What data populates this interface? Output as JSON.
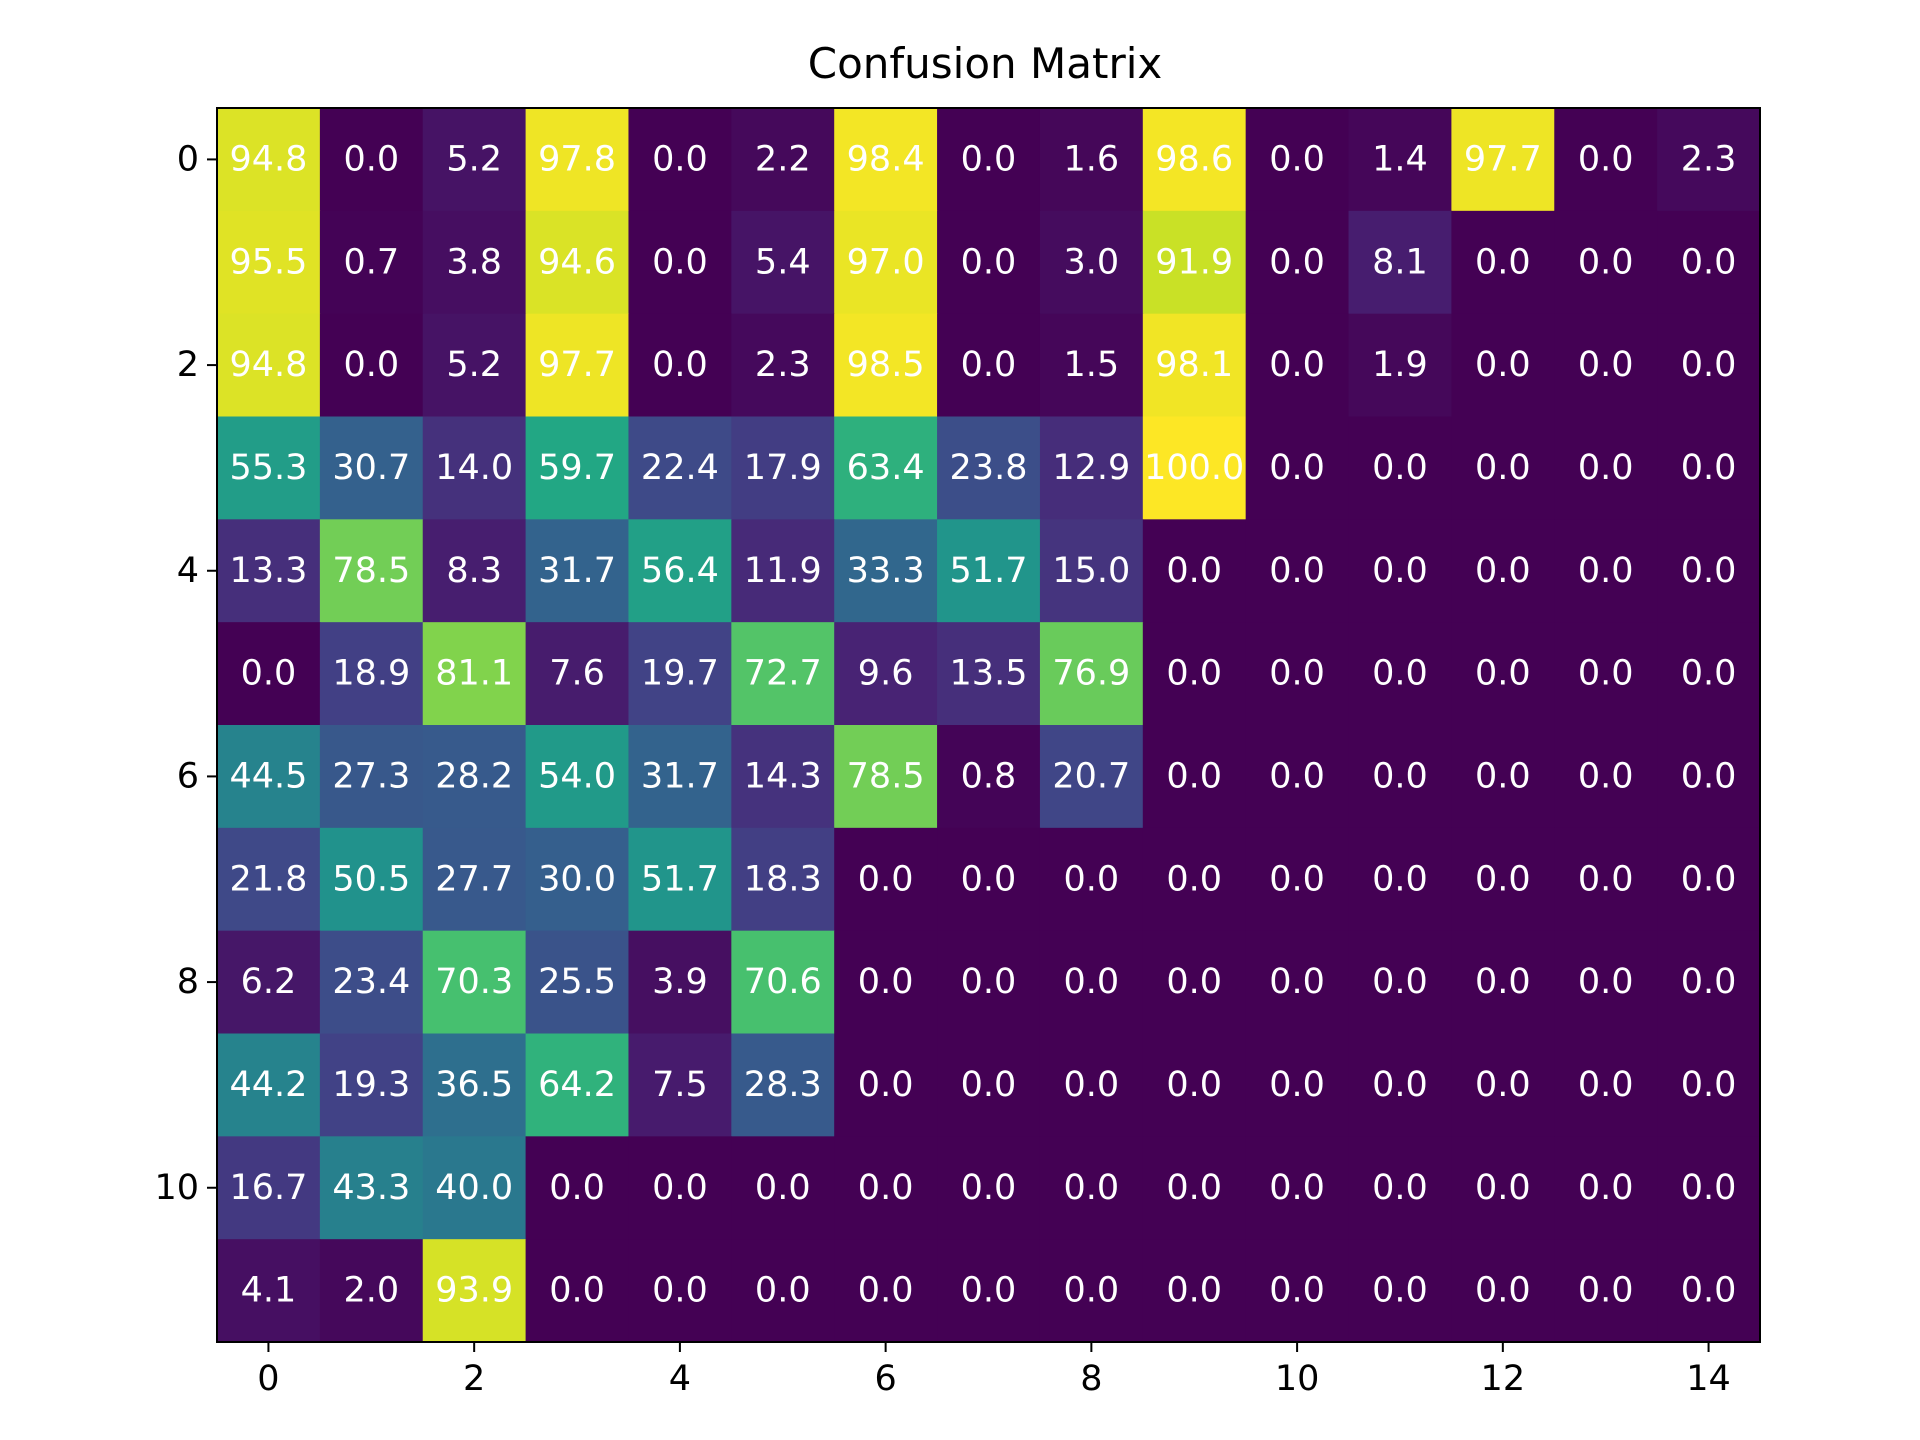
{
  "chart_data": {
    "type": "heatmap",
    "title": "Confusion Matrix",
    "xlabel": "",
    "ylabel": "",
    "colormap": "viridis",
    "value_range": [
      0,
      100
    ],
    "x_ticks": [
      "0",
      "2",
      "4",
      "6",
      "8",
      "10",
      "12",
      "14"
    ],
    "y_ticks": [
      "0",
      "2",
      "4",
      "6",
      "8",
      "10"
    ],
    "values": [
      [
        94.8,
        0.0,
        5.2,
        97.8,
        0.0,
        2.2,
        98.4,
        0.0,
        1.6,
        98.6,
        0.0,
        1.4,
        97.7,
        0.0,
        2.3
      ],
      [
        95.5,
        0.7,
        3.8,
        94.6,
        0.0,
        5.4,
        97.0,
        0.0,
        3.0,
        91.9,
        0.0,
        8.1,
        0.0,
        0.0,
        0.0
      ],
      [
        94.8,
        0.0,
        5.2,
        97.7,
        0.0,
        2.3,
        98.5,
        0.0,
        1.5,
        98.1,
        0.0,
        1.9,
        0.0,
        0.0,
        0.0
      ],
      [
        55.3,
        30.7,
        14.0,
        59.7,
        22.4,
        17.9,
        63.4,
        23.8,
        12.9,
        100.0,
        0.0,
        0.0,
        0.0,
        0.0,
        0.0
      ],
      [
        13.3,
        78.5,
        8.3,
        31.7,
        56.4,
        11.9,
        33.3,
        51.7,
        15.0,
        0.0,
        0.0,
        0.0,
        0.0,
        0.0,
        0.0
      ],
      [
        0.0,
        18.9,
        81.1,
        7.6,
        19.7,
        72.7,
        9.6,
        13.5,
        76.9,
        0.0,
        0.0,
        0.0,
        0.0,
        0.0,
        0.0
      ],
      [
        44.5,
        27.3,
        28.2,
        54.0,
        31.7,
        14.3,
        78.5,
        0.8,
        20.7,
        0.0,
        0.0,
        0.0,
        0.0,
        0.0,
        0.0
      ],
      [
        21.8,
        50.5,
        27.7,
        30.0,
        51.7,
        18.3,
        0.0,
        0.0,
        0.0,
        0.0,
        0.0,
        0.0,
        0.0,
        0.0,
        0.0
      ],
      [
        6.2,
        23.4,
        70.3,
        25.5,
        3.9,
        70.6,
        0.0,
        0.0,
        0.0,
        0.0,
        0.0,
        0.0,
        0.0,
        0.0,
        0.0
      ],
      [
        44.2,
        19.3,
        36.5,
        64.2,
        7.5,
        28.3,
        0.0,
        0.0,
        0.0,
        0.0,
        0.0,
        0.0,
        0.0,
        0.0,
        0.0
      ],
      [
        16.7,
        43.3,
        40.0,
        0.0,
        0.0,
        0.0,
        0.0,
        0.0,
        0.0,
        0.0,
        0.0,
        0.0,
        0.0,
        0.0,
        0.0
      ],
      [
        4.1,
        2.0,
        93.9,
        0.0,
        0.0,
        0.0,
        0.0,
        0.0,
        0.0,
        0.0,
        0.0,
        0.0,
        0.0,
        0.0,
        0.0
      ]
    ]
  }
}
